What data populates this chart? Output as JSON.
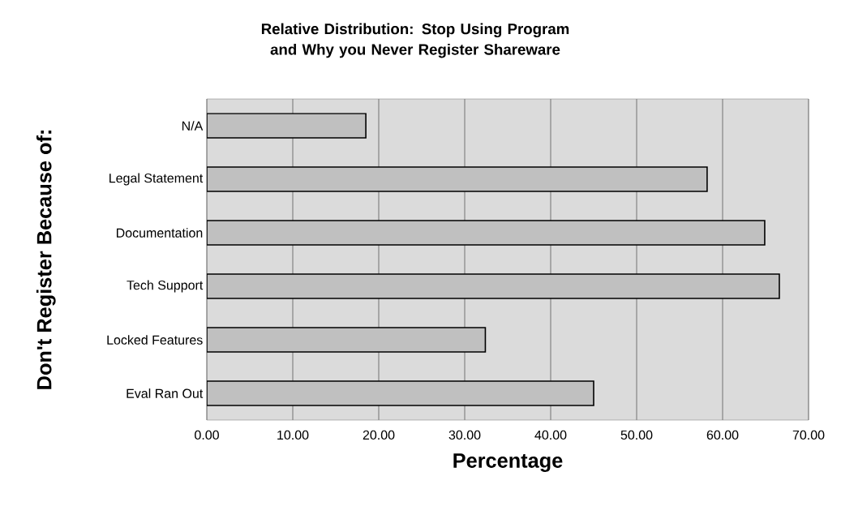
{
  "chart_data": {
    "type": "bar",
    "orientation": "horizontal",
    "title": "Relative Distribution: Stop Using Program and Why you Never Register Shareware",
    "xlabel": "Percentage",
    "ylabel": "Don't Register Because of:",
    "categories": [
      "N/A",
      "Legal Statement",
      "Documentation",
      "Tech Support",
      "Locked Features",
      "Eval Ran Out"
    ],
    "values": [
      18.5,
      58.2,
      64.9,
      66.6,
      32.4,
      45.0
    ],
    "color": "#c0c0c0",
    "xlim": [
      0,
      70
    ],
    "xticks": [
      {
        "value": 0,
        "label": "0.00"
      },
      {
        "value": 10,
        "label": "10.00"
      },
      {
        "value": 20,
        "label": "20.00"
      },
      {
        "value": 30,
        "label": "30.00"
      },
      {
        "value": 40,
        "label": "40.00"
      },
      {
        "value": 50,
        "label": "50.00"
      },
      {
        "value": 60,
        "label": "60.00"
      },
      {
        "value": 70,
        "label": "70.00"
      }
    ],
    "grid": "x"
  }
}
